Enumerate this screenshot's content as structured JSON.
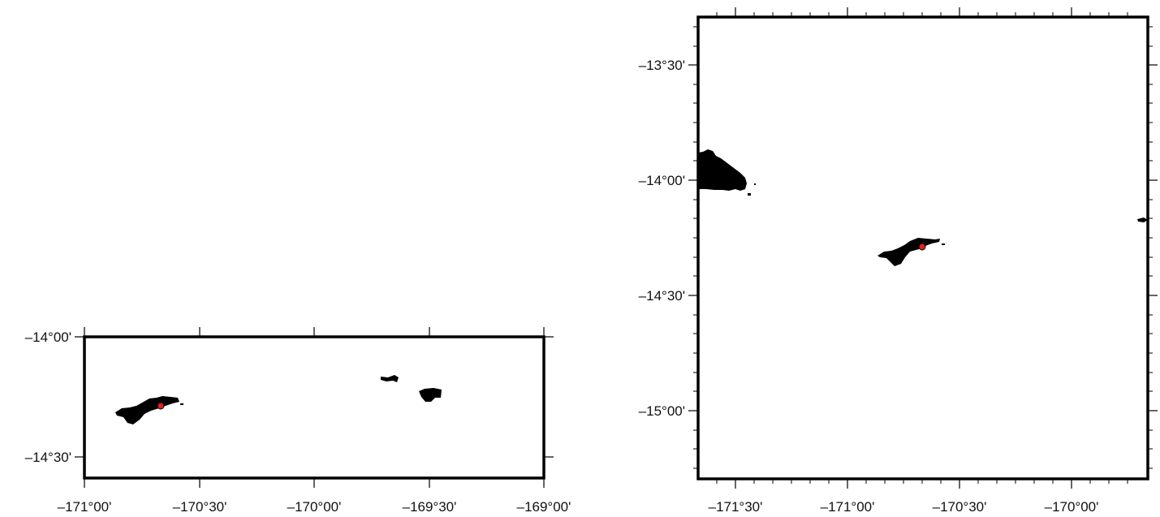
{
  "maps": [
    {
      "id": "left",
      "lat_labels": [
        "-14°00'",
        "-14°30'"
      ],
      "lon_labels": [
        "-171°00'",
        "-170°30'",
        "-170°00'",
        "-169°30'",
        "-169°00'"
      ],
      "marker": {
        "label": "",
        "color": "#e02020"
      }
    },
    {
      "id": "right",
      "lat_labels": [
        "-13°30'",
        "-14°00'",
        "-14°30'",
        "-15°00'"
      ],
      "lon_labels": [
        "-171°30'",
        "-171°00'",
        "-170°30'",
        "-170°00'"
      ],
      "marker": {
        "label": "",
        "color": "#e02020"
      }
    }
  ],
  "colors": {
    "land": "#000000",
    "frame": "#000000",
    "marker": "#e02020"
  }
}
